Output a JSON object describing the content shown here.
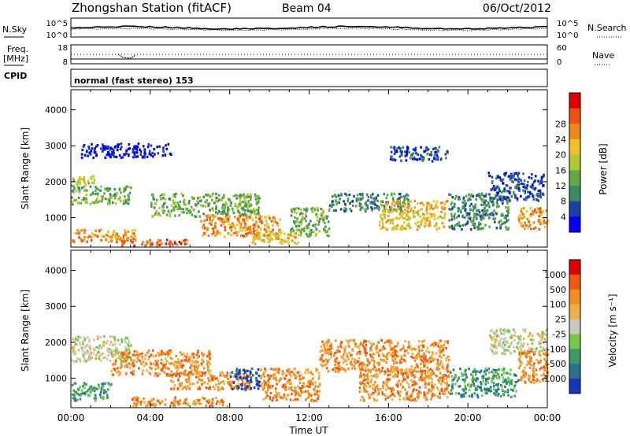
{
  "header": {
    "title": "Zhongshan Station (fitACF)",
    "beam": "Beam 04",
    "date": "06/Oct/2012"
  },
  "top_panels": {
    "nsky_label": "N.Sky",
    "nsky_ticks": [
      "10^5",
      "10^0"
    ],
    "nsearch_label": "N.Search",
    "nsearch_ticks": [
      "10^5",
      "10^0"
    ],
    "freq_label_1": "Freq.",
    "freq_label_2": "[MHz]",
    "freq_ticks": [
      "18",
      "8"
    ],
    "nave_label": "Nave",
    "nave_ticks": [
      "60",
      "0"
    ],
    "cpid_label": "CPID",
    "cpid_text": "normal (fast stereo) 153"
  },
  "chart_data": [
    {
      "type": "heatmap",
      "name": "power",
      "ylabel": "Slant Range [km]",
      "ylim": [
        180,
        4560
      ],
      "yticks": [
        "1000",
        "2000",
        "3000",
        "4000"
      ],
      "xlim_hours": [
        0,
        24
      ],
      "colorbar_label": "Power [dB]",
      "colorbar_ticks": [
        "4",
        "8",
        "12",
        "16",
        "20",
        "24",
        "28"
      ],
      "colors": [
        "#0000ff",
        "#1c3fa5",
        "#3c8a62",
        "#62a846",
        "#b0c832",
        "#f0c028",
        "#f08818",
        "#f05010",
        "#e00000"
      ],
      "blobs": [
        {
          "t0": 0.0,
          "t1": 1.2,
          "r0": 1900,
          "r1": 2200,
          "level": 4
        },
        {
          "t0": 0.0,
          "t1": 3.0,
          "r0": 1400,
          "r1": 1900,
          "level": 3
        },
        {
          "t0": 0.0,
          "t1": 3.2,
          "r0": 350,
          "r1": 700,
          "level": 6
        },
        {
          "t0": 2.5,
          "t1": 6.0,
          "r0": 250,
          "r1": 420,
          "level": 7
        },
        {
          "t0": 4.0,
          "t1": 9.5,
          "r0": 1050,
          "r1": 1700,
          "level": 3
        },
        {
          "t0": 6.5,
          "t1": 10.5,
          "r0": 500,
          "r1": 1100,
          "level": 6
        },
        {
          "t0": 9.0,
          "t1": 11.5,
          "r0": 300,
          "r1": 700,
          "level": 5
        },
        {
          "t0": 11.0,
          "t1": 13.0,
          "r0": 500,
          "r1": 1300,
          "level": 3
        },
        {
          "t0": 13.0,
          "t1": 17.0,
          "r0": 1200,
          "r1": 1700,
          "level": 2
        },
        {
          "t0": 15.5,
          "t1": 19.0,
          "r0": 700,
          "r1": 1500,
          "level": 5
        },
        {
          "t0": 19.0,
          "t1": 22.0,
          "r0": 700,
          "r1": 1700,
          "level": 2
        },
        {
          "t0": 21.0,
          "t1": 23.8,
          "r0": 1500,
          "r1": 2300,
          "level": 1
        },
        {
          "t0": 22.5,
          "t1": 24.0,
          "r0": 700,
          "r1": 1300,
          "level": 6
        },
        {
          "t0": 0.5,
          "t1": 5.0,
          "r0": 2700,
          "r1": 3100,
          "level": 0
        },
        {
          "t0": 16.0,
          "t1": 19.0,
          "r0": 2600,
          "r1": 3000,
          "level": 1
        }
      ]
    },
    {
      "type": "heatmap",
      "name": "velocity",
      "ylabel": "Slant Range [km]",
      "xlabel": "Time UT",
      "ylim": [
        180,
        4560
      ],
      "yticks": [
        "1000",
        "2000",
        "3000",
        "4000"
      ],
      "xticks": [
        "00:00",
        "04:00",
        "08:00",
        "12:00",
        "16:00",
        "20:00",
        "00:00"
      ],
      "xlim_hours": [
        0,
        24
      ],
      "colorbar_label": "Velocity [m s⁻¹]",
      "colorbar_ticks": [
        "1000",
        "500",
        "100",
        "25",
        "-25",
        "-100",
        "-500",
        "-1000"
      ],
      "colors": [
        "#1836b8",
        "#2a7090",
        "#3c9a64",
        "#74c848",
        "#c8c8c0",
        "#f0b048",
        "#f08c20",
        "#f05a10",
        "#e00000"
      ],
      "blobs": [
        {
          "t0": 0.0,
          "t1": 3.0,
          "r0": 1500,
          "r1": 2200,
          "level": 4
        },
        {
          "t0": 0.0,
          "t1": 2.0,
          "r0": 400,
          "r1": 900,
          "level": 2
        },
        {
          "t0": 2.0,
          "t1": 7.0,
          "r0": 1100,
          "r1": 1800,
          "level": 6
        },
        {
          "t0": 3.0,
          "t1": 8.0,
          "r0": 250,
          "r1": 500,
          "level": 6
        },
        {
          "t0": 5.0,
          "t1": 9.0,
          "r0": 700,
          "r1": 1200,
          "level": 6
        },
        {
          "t0": 8.0,
          "t1": 9.5,
          "r0": 700,
          "r1": 1300,
          "level": 0
        },
        {
          "t0": 9.5,
          "t1": 12.5,
          "r0": 400,
          "r1": 1300,
          "level": 6
        },
        {
          "t0": 12.5,
          "t1": 19.0,
          "r0": 1200,
          "r1": 2100,
          "level": 6
        },
        {
          "t0": 14.5,
          "t1": 19.0,
          "r0": 400,
          "r1": 1300,
          "level": 6
        },
        {
          "t0": 19.0,
          "t1": 22.5,
          "r0": 500,
          "r1": 1300,
          "level": 2
        },
        {
          "t0": 21.0,
          "t1": 24.0,
          "r0": 1700,
          "r1": 2400,
          "level": 4
        },
        {
          "t0": 22.5,
          "t1": 24.0,
          "r0": 900,
          "r1": 1800,
          "level": 6
        }
      ]
    }
  ]
}
